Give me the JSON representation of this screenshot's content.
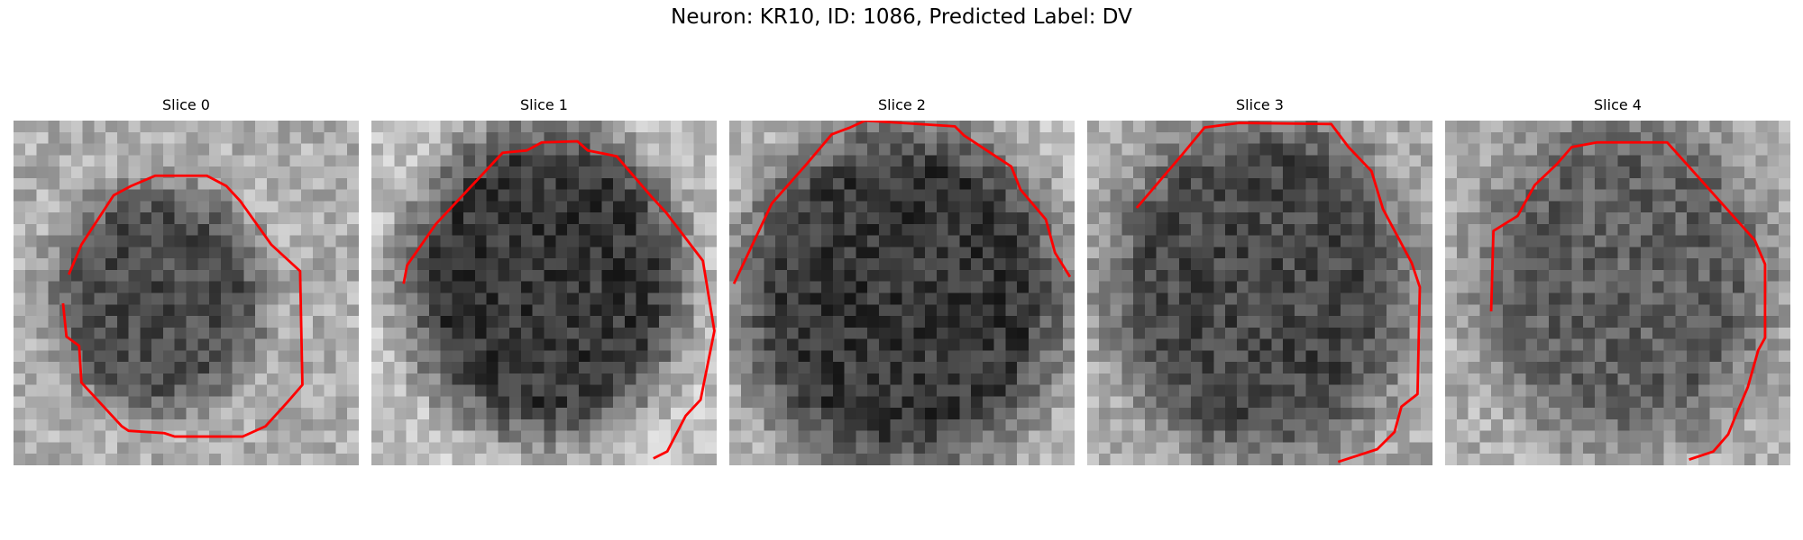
{
  "figure": {
    "title": "Neuron: KR10, ID: 1086, Predicted Label: DV"
  },
  "panels": [
    {
      "title": "Slice 0"
    },
    {
      "title": "Slice 1"
    },
    {
      "title": "Slice 2"
    },
    {
      "title": "Slice 3"
    },
    {
      "title": "Slice 4"
    }
  ],
  "contour_color": "#ff0000"
}
